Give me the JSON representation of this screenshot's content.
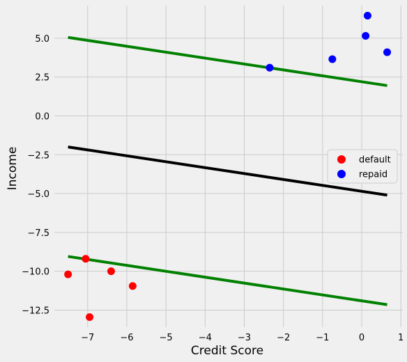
{
  "chart_data": {
    "type": "scatter",
    "xlabel": "Credit Score",
    "ylabel": "Income",
    "xlim": [
      -7.85,
      1.05
    ],
    "ylim": [
      -13.6,
      7.1
    ],
    "xticks": [
      -7,
      -6,
      -5,
      -4,
      -3,
      -2,
      -1,
      0,
      1
    ],
    "xtick_labels": [
      "−7",
      "−6",
      "−5",
      "−4",
      "−3",
      "−2",
      "−1",
      "0",
      "1"
    ],
    "yticks": [
      5.0,
      2.5,
      0.0,
      -2.5,
      -5.0,
      -7.5,
      -10.0,
      -12.5
    ],
    "ytick_labels": [
      "5.0",
      "2.5",
      "0.0",
      "−2.5",
      "−5.0",
      "−7.5",
      "−10.0",
      "−12.5"
    ],
    "grid": true,
    "legend_position": "center-right",
    "series": [
      {
        "name": "default",
        "color": "#ff0000",
        "points": [
          {
            "x": -7.5,
            "y": -10.2
          },
          {
            "x": -7.05,
            "y": -9.2
          },
          {
            "x": -6.4,
            "y": -10.0
          },
          {
            "x": -5.85,
            "y": -10.95
          },
          {
            "x": -6.95,
            "y": -12.95
          }
        ]
      },
      {
        "name": "repaid",
        "color": "#0000ff",
        "points": [
          {
            "x": -2.35,
            "y": 3.1
          },
          {
            "x": -0.75,
            "y": 3.65
          },
          {
            "x": 0.15,
            "y": 6.45
          },
          {
            "x": 0.1,
            "y": 5.15
          },
          {
            "x": 0.65,
            "y": 4.1
          }
        ]
      }
    ],
    "lines": [
      {
        "role": "upper-margin",
        "color": "#008000",
        "x": [
          -7.5,
          0.65
        ],
        "y": [
          5.05,
          1.95
        ]
      },
      {
        "role": "decision-boundary",
        "color": "#000000",
        "x": [
          -7.5,
          0.65
        ],
        "y": [
          -2.0,
          -5.1
        ]
      },
      {
        "role": "lower-margin",
        "color": "#008000",
        "x": [
          -7.5,
          0.65
        ],
        "y": [
          -9.05,
          -12.15
        ]
      }
    ]
  }
}
